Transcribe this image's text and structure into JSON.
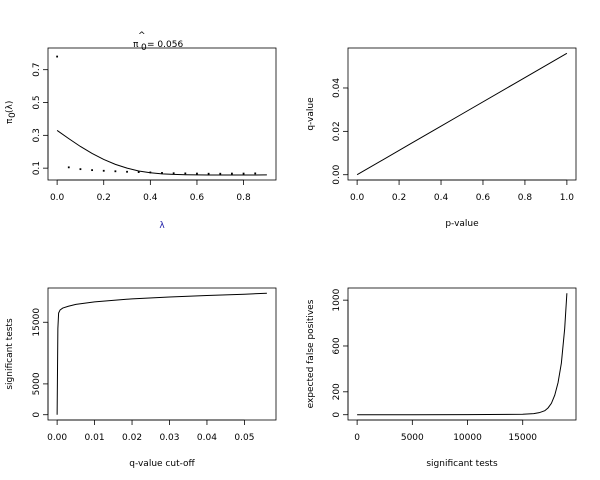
{
  "chart_data": [
    {
      "type": "scatter",
      "title": "π̂0 = 0.056",
      "title_hat": "^",
      "title_main": "π",
      "title_sub": "0",
      "title_rest": "= 0.056",
      "xlabel": "λ",
      "ylabel": "π0(λ)",
      "ylabel_main": "π",
      "ylabel_sub": "0",
      "ylabel_rest": "(λ)",
      "xlim": [
        0,
        0.9
      ],
      "ylim": [
        0.06,
        0.8
      ],
      "xticks": [
        "0.0",
        "0.2",
        "0.4",
        "0.6",
        "0.8"
      ],
      "yticks": [
        "0.1",
        "0.3",
        "0.5",
        "0.7"
      ],
      "points": {
        "x": [
          0.0,
          0.05,
          0.1,
          0.15,
          0.2,
          0.25,
          0.3,
          0.35,
          0.4,
          0.45,
          0.5,
          0.55,
          0.6,
          0.65,
          0.7,
          0.75,
          0.8,
          0.85
        ],
        "y": [
          0.78,
          0.105,
          0.094,
          0.088,
          0.084,
          0.081,
          0.078,
          0.076,
          0.074,
          0.071,
          0.069,
          0.068,
          0.067,
          0.066,
          0.066,
          0.067,
          0.067,
          0.068
        ]
      },
      "line": {
        "x": [
          0.0,
          0.05,
          0.1,
          0.15,
          0.2,
          0.25,
          0.3,
          0.35,
          0.4,
          0.45,
          0.5,
          0.55,
          0.6,
          0.65,
          0.7,
          0.75,
          0.8,
          0.85,
          0.9
        ],
        "y": [
          0.33,
          0.28,
          0.232,
          0.19,
          0.153,
          0.123,
          0.1,
          0.083,
          0.072,
          0.065,
          0.062,
          0.06,
          0.059,
          0.058,
          0.058,
          0.058,
          0.058,
          0.058,
          0.059
        ]
      }
    },
    {
      "type": "line",
      "xlabel": "p-value",
      "ylabel": "q-value",
      "xlim": [
        0,
        1.0
      ],
      "ylim": [
        0,
        0.056
      ],
      "xticks": [
        "0.0",
        "0.2",
        "0.4",
        "0.6",
        "0.8",
        "1.0"
      ],
      "yticks": [
        "0.00",
        "0.02",
        "0.04"
      ],
      "x": [
        0.0,
        0.25,
        0.5,
        0.75,
        1.0
      ],
      "y": [
        0.0,
        0.014,
        0.028,
        0.042,
        0.056
      ]
    },
    {
      "type": "line",
      "xlabel": "q-value cut-off",
      "ylabel": "significant tests",
      "xlim": [
        0,
        0.056
      ],
      "ylim": [
        0,
        19700
      ],
      "xticks": [
        "0.00",
        "0.01",
        "0.02",
        "0.03",
        "0.04",
        "0.05"
      ],
      "yticks": [
        "0",
        "5000",
        "15000"
      ],
      "x": [
        0.0,
        0.0002,
        0.0004,
        0.0008,
        0.0015,
        0.003,
        0.005,
        0.01,
        0.02,
        0.03,
        0.04,
        0.05,
        0.056
      ],
      "y": [
        0,
        14000,
        16500,
        17000,
        17300,
        17600,
        17900,
        18300,
        18800,
        19100,
        19350,
        19550,
        19700
      ]
    },
    {
      "type": "line",
      "xlabel": "significant tests",
      "ylabel": "expected false positives",
      "xlim": [
        0,
        19000
      ],
      "ylim": [
        0,
        1060
      ],
      "xticks": [
        "0",
        "5000",
        "10000",
        "15000"
      ],
      "yticks": [
        "0",
        "200",
        "600",
        "1000"
      ],
      "x": [
        0,
        5000,
        10000,
        15000,
        16000,
        16500,
        17000,
        17300,
        17600,
        17900,
        18200,
        18500,
        18800,
        19000
      ],
      "y": [
        0,
        0,
        1,
        4,
        10,
        18,
        35,
        60,
        100,
        170,
        280,
        450,
        750,
        1060
      ]
    }
  ]
}
